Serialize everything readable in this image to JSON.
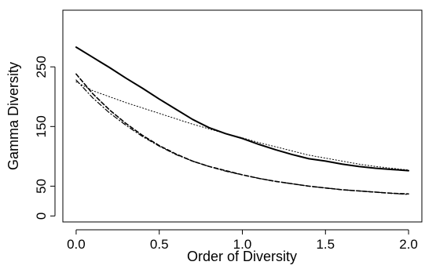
{
  "chart_data": {
    "type": "line",
    "xlabel": "Order of Diversity",
    "ylabel": "Gamma Diversity",
    "xlim": [
      -0.08,
      2.08
    ],
    "ylim": [
      -10,
      345
    ],
    "x_ticks": [
      0.0,
      0.5,
      1.0,
      1.5,
      2.0
    ],
    "x_tick_labels": [
      "0.0",
      "0.5",
      "1.0",
      "1.5",
      "2.0"
    ],
    "y_ticks": [
      0,
      50,
      150,
      250
    ],
    "y_tick_labels": [
      "0",
      "50",
      "150",
      "250"
    ],
    "grid": false,
    "legend": "none",
    "x": [
      0.0,
      0.1,
      0.2,
      0.3,
      0.4,
      0.5,
      0.6,
      0.7,
      0.8,
      0.9,
      1.0,
      1.1,
      1.2,
      1.3,
      1.4,
      1.5,
      1.6,
      1.7,
      1.8,
      1.9,
      2.0
    ],
    "series": [
      {
        "style": "solid",
        "color": "#000000",
        "values": [
          283,
          266,
          249,
          231,
          214,
          196,
          179,
          162,
          148,
          138,
          130,
          120,
          111,
          103,
          96,
          92,
          87,
          83,
          80,
          78,
          76
        ]
      },
      {
        "style": "dotted",
        "color": "#000000",
        "values": [
          225,
          210,
          200,
          190,
          181,
          172,
          163,
          154,
          146,
          138,
          131,
          123,
          116,
          109,
          102,
          97,
          92,
          87,
          83,
          80,
          77
        ]
      },
      {
        "style": "dashed",
        "color": "#000000",
        "values": [
          238,
          205,
          178,
          155,
          135,
          118,
          104,
          92,
          83,
          76,
          69,
          63,
          58,
          54,
          50,
          47,
          44,
          42,
          40,
          38,
          37
        ]
      },
      {
        "style": "dotdash",
        "color": "#000000",
        "values": [
          228,
          198,
          173,
          152,
          133,
          117,
          103,
          92,
          83,
          75,
          69,
          63,
          58,
          54,
          50,
          47,
          44,
          42,
          40,
          38,
          36
        ]
      }
    ]
  }
}
